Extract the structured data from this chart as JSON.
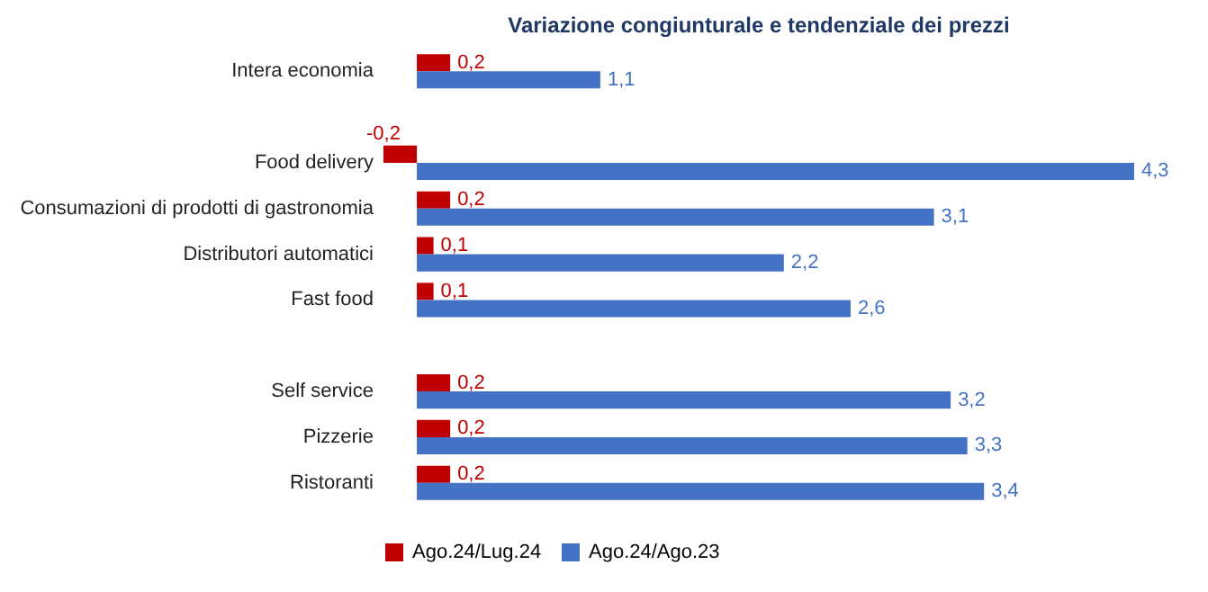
{
  "chart_data": {
    "type": "bar",
    "orientation": "horizontal",
    "title": "Variazione congiunturale e tendenziale dei prezzi",
    "categories": [
      "Intera economia",
      null,
      "Food delivery",
      "Consumazioni di prodotti di gastronomia",
      "Distributori automatici",
      "Fast food",
      null,
      "Self service",
      "Pizzerie",
      "Ristoranti"
    ],
    "series": [
      {
        "name": "Ago.24/Lug.24",
        "color": "#c00000",
        "values": [
          0.2,
          null,
          -0.2,
          0.2,
          0.1,
          0.1,
          null,
          0.2,
          0.2,
          0.2
        ],
        "value_labels": [
          "0,2",
          null,
          "-0,2",
          "0,2",
          "0,1",
          "0,1",
          null,
          "0,2",
          "0,2",
          "0,2"
        ]
      },
      {
        "name": "Ago.24/Ago.23",
        "color": "#4472c4",
        "values": [
          1.1,
          null,
          4.3,
          3.1,
          2.2,
          2.6,
          null,
          3.2,
          3.3,
          3.4
        ],
        "value_labels": [
          "1,1",
          null,
          "4,3",
          "3,1",
          "2,2",
          "2,6",
          null,
          "3,2",
          "3,3",
          "3,4"
        ]
      }
    ],
    "grid": false,
    "legend": "bottom"
  }
}
